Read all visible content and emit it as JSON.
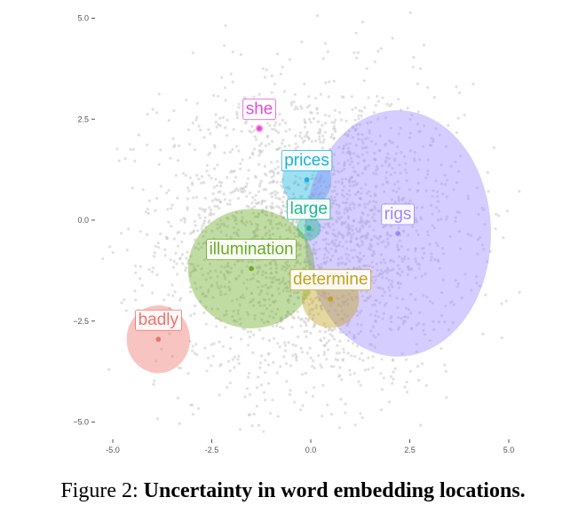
{
  "chart_data": {
    "type": "scatter",
    "title": "",
    "xlabel": "",
    "ylabel": "",
    "xlim": [
      -5.3,
      5.3
    ],
    "ylim": [
      -5.3,
      5.2
    ],
    "grid": false,
    "x_ticks": [
      -5.0,
      -2.5,
      0.0,
      2.5,
      5.0
    ],
    "x_tick_labels": [
      "-5.0",
      "-2.5",
      "0.0",
      "2.5",
      "5.0"
    ],
    "y_ticks": [
      5.0,
      2.5,
      0.0,
      -2.5,
      -5.0
    ],
    "y_tick_labels": [
      "5.0",
      "2.5",
      "0.0",
      "−2.5",
      "−5.0"
    ],
    "background_points": {
      "count_estimate": 2500,
      "color": "#c8c8c8",
      "center": [
        0.0,
        -0.4
      ],
      "spread": [
        1.9,
        1.9
      ]
    },
    "words": [
      {
        "label": "she",
        "x": -1.3,
        "y": 2.27,
        "rx": 0.1,
        "ry": 0.1,
        "color": "#e44ad8"
      },
      {
        "label": "prices",
        "x": -0.1,
        "y": 1.0,
        "rx": 0.62,
        "ry": 0.68,
        "color": "#19b2e0"
      },
      {
        "label": "rigs",
        "x": 2.2,
        "y": -0.33,
        "rx": 2.35,
        "ry": 3.05,
        "color": "#9b86ff"
      },
      {
        "label": "large",
        "x": -0.05,
        "y": -0.2,
        "rx": 0.3,
        "ry": 0.3,
        "color": "#19b98a"
      },
      {
        "label": "illumination",
        "x": -1.5,
        "y": -1.2,
        "rx": 1.6,
        "ry": 1.48,
        "color": "#6aab24"
      },
      {
        "label": "determine",
        "x": 0.5,
        "y": -1.95,
        "rx": 0.72,
        "ry": 0.72,
        "color": "#c2a21a"
      },
      {
        "label": "badly",
        "x": -3.85,
        "y": -2.95,
        "rx": 0.8,
        "ry": 0.84,
        "color": "#ef726b"
      }
    ]
  },
  "caption": {
    "prefix": "Figure 2: ",
    "bold": "Uncertainty in word embedding locations."
  }
}
